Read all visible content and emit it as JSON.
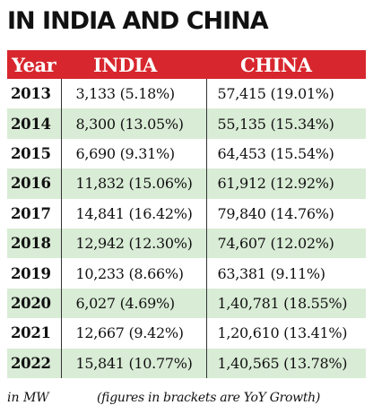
{
  "title": "IN INDIA AND CHINA",
  "chart_data": {
    "type": "table",
    "columns": [
      "Year",
      "INDIA",
      "CHINA"
    ],
    "rows": [
      {
        "year": "2013",
        "india": "3,133 (5.18%)",
        "china": "57,415 (19.01%)"
      },
      {
        "year": "2014",
        "india": "8,300 (13.05%)",
        "china": "55,135 (15.34%)"
      },
      {
        "year": "2015",
        "india": "6,690 (9.31%)",
        "china": "64,453 (15.54%)"
      },
      {
        "year": "2016",
        "india": "11,832 (15.06%)",
        "china": "61,912 (12.92%)"
      },
      {
        "year": "2017",
        "india": "14,841 (16.42%)",
        "china": "79,840 (14.76%)"
      },
      {
        "year": "2018",
        "india": "12,942 (12.30%)",
        "china": "74,607 (12.02%)"
      },
      {
        "year": "2019",
        "india": "10,233 (8.66%)",
        "china": "63,381 (9.11%)"
      },
      {
        "year": "2020",
        "india": "6,027 (4.69%)",
        "china": "1,40,781 (18.55%)"
      },
      {
        "year": "2021",
        "india": "12,667 (9.42%)",
        "china": "1,20,610 (13.41%)"
      },
      {
        "year": "2022",
        "india": "15,841 (10.77%)",
        "china": "1,40,565 (13.78%)"
      }
    ]
  },
  "footnote": {
    "unit": "in MW",
    "note": "(figures in brackets are YoY Growth)"
  },
  "colors": {
    "header_bg": "#d7262d",
    "stripe_bg": "#d9ecd6"
  }
}
